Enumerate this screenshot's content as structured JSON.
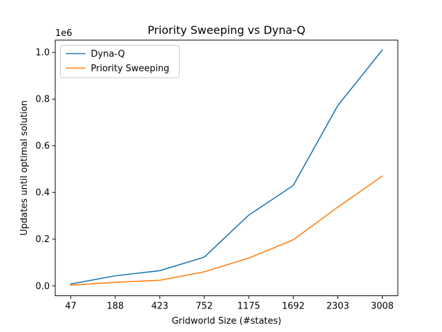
{
  "chart_data": {
    "type": "line",
    "title": "Priority Sweeping vs Dyna-Q",
    "xlabel": "Gridworld Size (#states)",
    "ylabel": "Updates until optimal solution",
    "y_offset_label": "1e6",
    "categories": [
      "47",
      "188",
      "423",
      "752",
      "1175",
      "1692",
      "2303",
      "3008"
    ],
    "series": [
      {
        "name": "Dyna-Q",
        "color": "#1f77b4",
        "values": [
          0.008,
          0.043,
          0.065,
          0.123,
          0.303,
          0.43,
          0.772,
          1.01
        ]
      },
      {
        "name": "Priority Sweeping",
        "color": "#ff7f0e",
        "values": [
          0.003,
          0.015,
          0.024,
          0.06,
          0.119,
          0.197,
          0.337,
          0.47
        ]
      }
    ],
    "yticks": [
      "0.0",
      "0.2",
      "0.4",
      "0.6",
      "0.8",
      "1.0"
    ],
    "ylim": [
      -0.0425,
      1.0525
    ],
    "grid": false,
    "legend_position": "top-left"
  }
}
